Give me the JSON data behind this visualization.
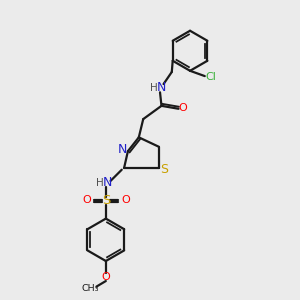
{
  "bg_color": "#ebebeb",
  "bond_color": "#1a1a1a",
  "colors": {
    "N": "#2020c8",
    "O": "#ff0000",
    "S": "#c8a000",
    "Cl": "#3ab03a",
    "H": "#505050",
    "C": "#1a1a1a"
  },
  "figsize": [
    3.0,
    3.0
  ],
  "dpi": 100
}
